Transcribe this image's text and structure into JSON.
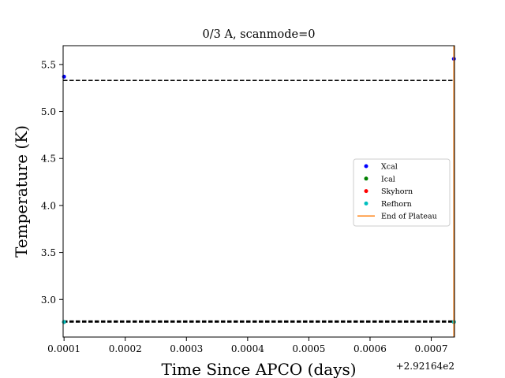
{
  "chart_data": {
    "type": "scatter",
    "title": "0/3 A, scanmode=0",
    "xlabel": "Time Since APCO (days)",
    "ylabel": "Temperature (K)",
    "x_offset_label": "+2.92164e2",
    "x_offset": 292.164,
    "xlim": [
      9.85e-05,
      0.000738
    ],
    "ylim": [
      2.6,
      5.7
    ],
    "x_ticks": [
      0.0001,
      0.0002,
      0.0003,
      0.0004,
      0.0005,
      0.0006,
      0.0007
    ],
    "x_tick_labels": [
      "0.0001",
      "0.0002",
      "0.0003",
      "0.0004",
      "0.0005",
      "0.0006",
      "0.0007"
    ],
    "y_ticks": [
      3.0,
      3.5,
      4.0,
      4.5,
      5.0,
      5.5
    ],
    "y_tick_labels": [
      "3.0",
      "3.5",
      "4.0",
      "4.5",
      "5.0",
      "5.5"
    ],
    "grid": false,
    "legend_position": "center-right",
    "series": [
      {
        "name": "Xcal",
        "kind": "points",
        "color": "#0000ff",
        "points": [
          [
            0.0001,
            5.37
          ],
          [
            0.000737,
            5.56
          ]
        ]
      },
      {
        "name": "Ical",
        "kind": "points",
        "color": "#008000",
        "points": [
          [
            0.0001,
            2.76
          ],
          [
            0.000737,
            2.76
          ]
        ]
      },
      {
        "name": "Skyhorn",
        "kind": "points",
        "color": "#ff0000",
        "points": [
          [
            0.0001,
            2.76
          ],
          [
            0.000737,
            2.76
          ]
        ]
      },
      {
        "name": "Refhorn",
        "kind": "points",
        "color": "#00bfbf",
        "points": [
          [
            0.0001,
            2.76
          ],
          [
            0.000737,
            2.76
          ]
        ]
      },
      {
        "name": "End of Plateau",
        "kind": "vline",
        "color": "#ff7f0e",
        "x": 0.000737
      }
    ],
    "reference_lines": [
      {
        "y": 5.33,
        "color": "#000000",
        "style": "dashed"
      },
      {
        "y": 2.77,
        "color": "#000000",
        "style": "dashed"
      },
      {
        "y": 2.76,
        "color": "#000000",
        "style": "dashed"
      }
    ]
  }
}
